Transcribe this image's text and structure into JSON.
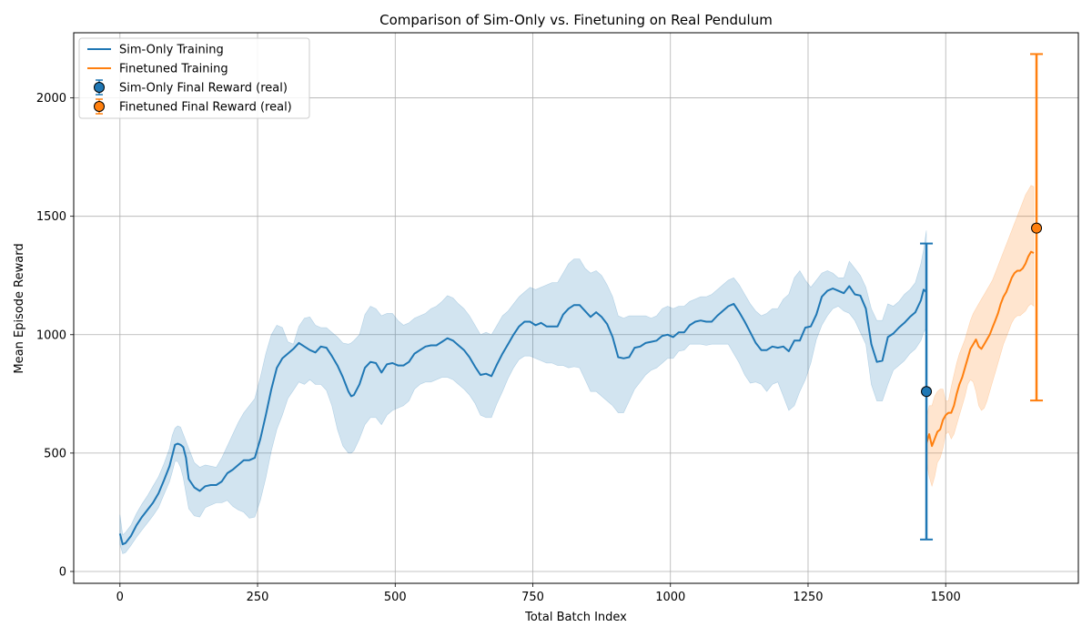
{
  "chart_data": {
    "type": "line",
    "title": "Comparison of Sim-Only vs. Finetuning on Real Pendulum",
    "xlabel": "Total Batch Index",
    "ylabel": "Mean Episode Reward",
    "xlim": [
      -84,
      1741
    ],
    "ylim": [
      -50,
      2275
    ],
    "xticks": [
      0,
      250,
      500,
      750,
      1000,
      1250,
      1500
    ],
    "yticks": [
      0,
      500,
      1000,
      1500,
      2000
    ],
    "grid": true,
    "legend_position": "top-left",
    "series": [
      {
        "name": "Sim-Only Training",
        "kind": "line_with_band",
        "color": "#1f77b4",
        "x": [
          0,
          5,
          10,
          20,
          30,
          40,
          50,
          60,
          70,
          80,
          90,
          95,
          100,
          105,
          110,
          115,
          120,
          125,
          135,
          145,
          155,
          165,
          175,
          185,
          195,
          205,
          215,
          225,
          235,
          245,
          255,
          265,
          275,
          285,
          295,
          305,
          315,
          325,
          335,
          345,
          355,
          365,
          375,
          385,
          395,
          405,
          415,
          420,
          425,
          435,
          445,
          455,
          465,
          475,
          485,
          495,
          505,
          515,
          525,
          535,
          545,
          555,
          565,
          575,
          585,
          595,
          605,
          615,
          625,
          635,
          645,
          655,
          665,
          675,
          685,
          695,
          705,
          715,
          725,
          735,
          745,
          755,
          765,
          775,
          785,
          795,
          805,
          815,
          825,
          835,
          845,
          855,
          865,
          875,
          885,
          895,
          905,
          915,
          925,
          935,
          945,
          955,
          965,
          975,
          985,
          995,
          1005,
          1015,
          1025,
          1035,
          1045,
          1055,
          1065,
          1075,
          1085,
          1095,
          1105,
          1115,
          1125,
          1135,
          1145,
          1155,
          1165,
          1175,
          1185,
          1195,
          1205,
          1215,
          1225,
          1235,
          1245,
          1255,
          1265,
          1275,
          1285,
          1295,
          1305,
          1315,
          1325,
          1335,
          1345,
          1355,
          1365,
          1375,
          1385,
          1395,
          1405,
          1415,
          1425,
          1435,
          1445,
          1455,
          1460,
          1465
        ],
        "y": [
          160,
          115,
          120,
          150,
          195,
          230,
          260,
          290,
          330,
          385,
          445,
          490,
          535,
          540,
          535,
          525,
          480,
          390,
          355,
          340,
          360,
          365,
          365,
          380,
          415,
          430,
          450,
          470,
          470,
          480,
          560,
          660,
          770,
          860,
          900,
          920,
          940,
          965,
          950,
          935,
          925,
          950,
          945,
          910,
          870,
          820,
          760,
          740,
          745,
          790,
          860,
          885,
          880,
          840,
          875,
          880,
          870,
          870,
          885,
          920,
          935,
          950,
          955,
          955,
          970,
          985,
          975,
          955,
          935,
          905,
          865,
          830,
          835,
          825,
          875,
          920,
          960,
          1000,
          1035,
          1055,
          1055,
          1040,
          1050,
          1035,
          1035,
          1035,
          1085,
          1110,
          1125,
          1125,
          1100,
          1075,
          1095,
          1075,
          1045,
          990,
          905,
          900,
          905,
          945,
          950,
          965,
          970,
          975,
          995,
          1000,
          990,
          1010,
          1010,
          1040,
          1055,
          1060,
          1055,
          1055,
          1080,
          1100,
          1120,
          1130,
          1095,
          1055,
          1010,
          965,
          935,
          935,
          950,
          945,
          950,
          930,
          975,
          975,
          1030,
          1035,
          1085,
          1160,
          1185,
          1195,
          1185,
          1175,
          1205,
          1170,
          1165,
          1110,
          960,
          885,
          890,
          990,
          1005,
          1030,
          1050,
          1075,
          1095,
          1145,
          1190,
          1180
        ],
        "band_low": [
          115,
          75,
          80,
          110,
          145,
          175,
          205,
          235,
          270,
          325,
          380,
          420,
          465,
          465,
          440,
          395,
          330,
          265,
          235,
          230,
          270,
          280,
          290,
          290,
          300,
          275,
          260,
          250,
          225,
          230,
          300,
          395,
          510,
          600,
          660,
          730,
          765,
          800,
          790,
          810,
          790,
          790,
          765,
          700,
          600,
          530,
          500,
          500,
          510,
          560,
          620,
          650,
          650,
          620,
          660,
          680,
          690,
          700,
          720,
          770,
          790,
          800,
          800,
          810,
          820,
          820,
          810,
          790,
          770,
          745,
          710,
          660,
          650,
          650,
          710,
          760,
          815,
          860,
          895,
          910,
          910,
          900,
          890,
          880,
          880,
          870,
          870,
          860,
          865,
          860,
          810,
          760,
          760,
          740,
          720,
          700,
          670,
          670,
          720,
          770,
          800,
          830,
          850,
          860,
          880,
          900,
          900,
          930,
          935,
          960,
          960,
          960,
          955,
          960,
          960,
          960,
          960,
          920,
          880,
          830,
          795,
          800,
          790,
          760,
          790,
          800,
          740,
          680,
          700,
          760,
          810,
          880,
          980,
          1040,
          1080,
          1110,
          1120,
          1100,
          1090,
          1060,
          1010,
          960,
          790,
          720,
          720,
          790,
          850,
          870,
          890,
          920,
          940,
          975,
          1010,
          1030
        ],
        "band_high": [
          240,
          155,
          165,
          195,
          245,
          285,
          320,
          360,
          400,
          455,
          520,
          575,
          605,
          615,
          610,
          580,
          550,
          520,
          460,
          440,
          450,
          445,
          440,
          480,
          530,
          580,
          630,
          670,
          700,
          730,
          820,
          920,
          1000,
          1040,
          1030,
          970,
          960,
          1035,
          1070,
          1075,
          1040,
          1030,
          1030,
          1010,
          990,
          965,
          960,
          965,
          975,
          1000,
          1085,
          1120,
          1110,
          1080,
          1090,
          1090,
          1060,
          1040,
          1050,
          1070,
          1080,
          1090,
          1110,
          1120,
          1140,
          1165,
          1155,
          1130,
          1110,
          1080,
          1040,
          1000,
          1010,
          1000,
          1040,
          1080,
          1100,
          1130,
          1160,
          1180,
          1200,
          1190,
          1200,
          1210,
          1220,
          1220,
          1260,
          1300,
          1320,
          1320,
          1280,
          1260,
          1270,
          1250,
          1210,
          1160,
          1080,
          1070,
          1080,
          1080,
          1080,
          1080,
          1070,
          1080,
          1110,
          1120,
          1110,
          1120,
          1120,
          1140,
          1150,
          1160,
          1160,
          1170,
          1190,
          1210,
          1230,
          1240,
          1210,
          1170,
          1130,
          1100,
          1080,
          1090,
          1110,
          1110,
          1150,
          1170,
          1240,
          1270,
          1230,
          1200,
          1230,
          1260,
          1270,
          1260,
          1240,
          1240,
          1310,
          1280,
          1250,
          1200,
          1110,
          1060,
          1060,
          1130,
          1120,
          1140,
          1170,
          1190,
          1220,
          1300,
          1360,
          1440
        ]
      },
      {
        "name": "Finetuned Training",
        "kind": "line_with_band",
        "color": "#ff7f0e",
        "x": [
          1465,
          1470,
          1475,
          1480,
          1485,
          1490,
          1495,
          1500,
          1505,
          1510,
          1515,
          1520,
          1525,
          1530,
          1535,
          1540,
          1545,
          1550,
          1555,
          1560,
          1565,
          1570,
          1575,
          1580,
          1585,
          1590,
          1595,
          1600,
          1605,
          1610,
          1615,
          1620,
          1625,
          1630,
          1635,
          1640,
          1645,
          1650,
          1655,
          1660
        ],
        "y": [
          540,
          580,
          530,
          560,
          590,
          600,
          640,
          660,
          670,
          670,
          700,
          750,
          790,
          820,
          860,
          900,
          940,
          960,
          980,
          950,
          940,
          960,
          980,
          1000,
          1030,
          1060,
          1090,
          1130,
          1160,
          1180,
          1210,
          1240,
          1260,
          1270,
          1270,
          1280,
          1300,
          1330,
          1350,
          1345
        ],
        "band_low": [
          470,
          400,
          360,
          400,
          460,
          480,
          520,
          580,
          590,
          560,
          580,
          620,
          660,
          700,
          740,
          790,
          810,
          800,
          760,
          700,
          680,
          690,
          720,
          760,
          800,
          840,
          880,
          920,
          960,
          990,
          1020,
          1050,
          1070,
          1080,
          1080,
          1090,
          1100,
          1120,
          1130,
          1120
        ],
        "band_high": [
          650,
          700,
          700,
          740,
          760,
          770,
          770,
          720,
          720,
          780,
          830,
          880,
          920,
          950,
          980,
          1020,
          1060,
          1090,
          1110,
          1130,
          1150,
          1170,
          1190,
          1210,
          1230,
          1260,
          1290,
          1320,
          1350,
          1380,
          1410,
          1440,
          1470,
          1500,
          1530,
          1560,
          1590,
          1610,
          1630,
          1625
        ]
      },
      {
        "name": "Sim-Only Final Reward (real)",
        "kind": "errorbar",
        "color": "#1f77b4",
        "x": [
          1465
        ],
        "y": [
          760
        ],
        "err_low": [
          135
        ],
        "err_high": [
          1385
        ]
      },
      {
        "name": "Finetuned Final Reward (real)",
        "kind": "errorbar",
        "color": "#ff7f0e",
        "x": [
          1665
        ],
        "y": [
          1450
        ],
        "err_low": [
          722
        ],
        "err_high": [
          2185
        ]
      }
    ]
  }
}
